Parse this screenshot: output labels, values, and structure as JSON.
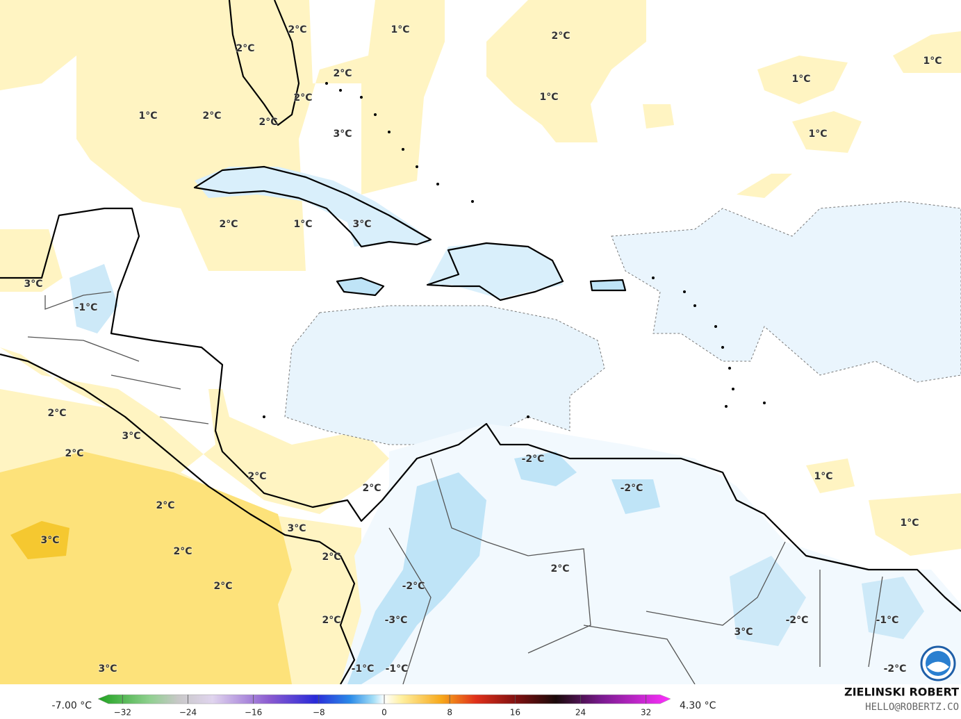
{
  "map": {
    "contour_labels": [
      "2°C",
      "1°C",
      "2°C",
      "1°C",
      "2°C",
      "2°C",
      "1°C",
      "2°C",
      "1°C",
      "1°C",
      "2°C",
      "2°C",
      "3°C",
      "1°C",
      "2°C",
      "1°C",
      "3°C",
      "3°C",
      "-1°C",
      "-2°C",
      "2°C",
      "3°C",
      "2°C",
      "2°C",
      "1°C",
      "2°C",
      "-2°C",
      "2°C",
      "1°C",
      "3°C",
      "3°C",
      "2°C",
      "2°C",
      "2°C",
      "2°C",
      "-2°C",
      "2°C",
      "-3°C",
      "-2°C",
      "-1°C",
      "3°C",
      "3°C",
      "-1°C",
      "-1°C",
      "-2°C"
    ]
  },
  "colorbar": {
    "min_label": "-7.00 °C",
    "max_label": "4.30 °C",
    "range": [
      -35,
      35
    ],
    "ticks": [
      {
        "value": -32,
        "label": "−32"
      },
      {
        "value": -24,
        "label": "−24"
      },
      {
        "value": -16,
        "label": "−16"
      },
      {
        "value": -8,
        "label": "−8"
      },
      0,
      8,
      16,
      24,
      32
    ]
  },
  "credits": {
    "author": "ZIELINSKI ROBERT",
    "contact": "HELLO@ROBERTZ.CO"
  }
}
